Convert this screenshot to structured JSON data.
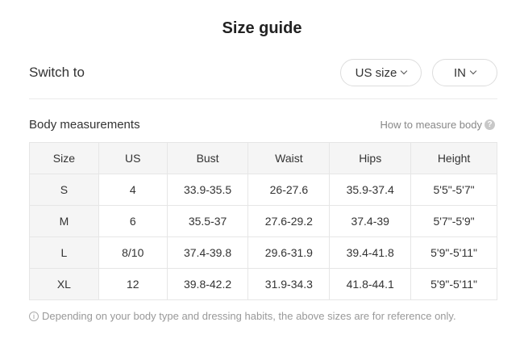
{
  "title": "Size guide",
  "switch_label": "Switch to",
  "size_select": "US size",
  "unit_select": "IN",
  "section_title": "Body measurements",
  "how_to_measure": "How to measure body",
  "table": {
    "headers": [
      "Size",
      "US",
      "Bust",
      "Waist",
      "Hips",
      "Height"
    ],
    "rows": [
      [
        "S",
        "4",
        "33.9-35.5",
        "26-27.6",
        "35.9-37.4",
        "5'5\"-5'7\""
      ],
      [
        "M",
        "6",
        "35.5-37",
        "27.6-29.2",
        "37.4-39",
        "5'7\"-5'9\""
      ],
      [
        "L",
        "8/10",
        "37.4-39.8",
        "29.6-31.9",
        "39.4-41.8",
        "5'9\"-5'11\""
      ],
      [
        "XL",
        "12",
        "39.8-42.2",
        "31.9-34.3",
        "41.8-44.1",
        "5'9\"-5'11\""
      ]
    ]
  },
  "note": "Depending on your body type and dressing habits, the above sizes are for reference only."
}
